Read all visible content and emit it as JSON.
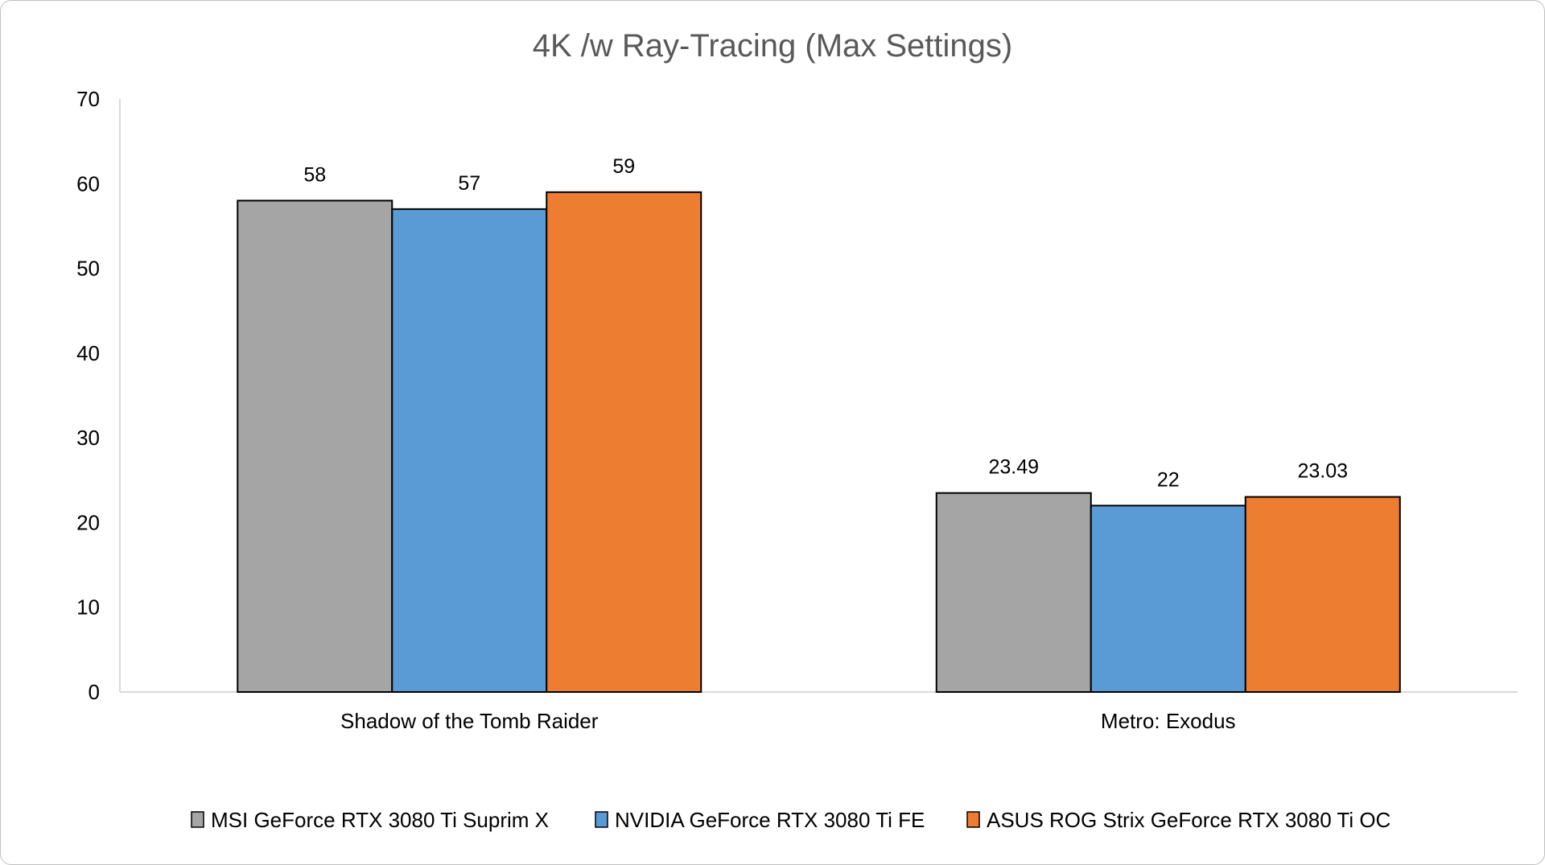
{
  "chart_data": {
    "type": "bar",
    "title": "4K /w Ray-Tracing (Max Settings)",
    "xlabel": "",
    "ylabel": "",
    "categories": [
      "Shadow of the Tomb Raider",
      "Metro: Exodus"
    ],
    "series": [
      {
        "name": "MSI GeForce RTX 3080 Ti Suprim X",
        "values": [
          58,
          23.49
        ],
        "labels": [
          "58",
          "23.49"
        ],
        "color": "#a5a5a5"
      },
      {
        "name": "NVIDIA GeForce RTX 3080 Ti FE",
        "values": [
          57,
          22
        ],
        "labels": [
          "57",
          "22"
        ],
        "color": "#5b9bd5"
      },
      {
        "name": "ASUS ROG Strix GeForce RTX 3080 Ti OC",
        "values": [
          59,
          23.03
        ],
        "labels": [
          "59",
          "23.03"
        ],
        "color": "#ed7d31"
      }
    ],
    "ylim": [
      0,
      70
    ],
    "yticks": [
      0,
      10,
      20,
      30,
      40,
      50,
      60,
      70
    ],
    "grid": false,
    "legend": "bottom"
  }
}
